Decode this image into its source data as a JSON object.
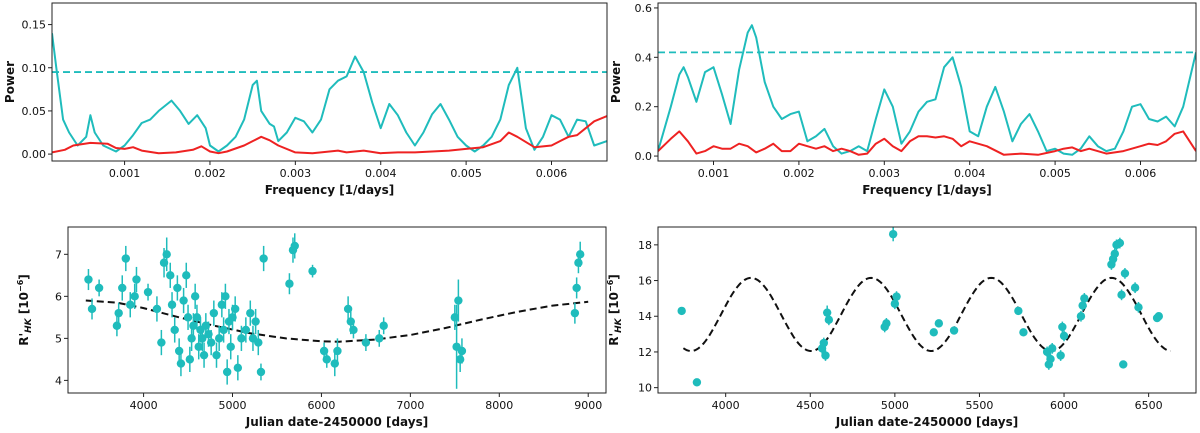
{
  "colors": {
    "series_main": "#1fbcbc",
    "series_window": "#ee2222",
    "fap_line": "#1fbcbc",
    "model": "#111111",
    "points": "#1fbcbc"
  },
  "chart_data": [
    {
      "id": "top-left",
      "type": "line",
      "xlabel": "Frequency [1/days]",
      "ylabel": "Power",
      "xlim": [
        0.00015,
        0.00665
      ],
      "ylim": [
        -0.008,
        0.175
      ],
      "xticks": [
        0.001,
        0.002,
        0.003,
        0.004,
        0.005,
        0.006
      ],
      "xtick_labels": [
        "0.001",
        "0.002",
        "0.003",
        "0.004",
        "0.005",
        "0.006"
      ],
      "yticks": [
        0.0,
        0.05,
        0.1,
        0.15
      ],
      "ytick_labels": [
        "0.00",
        "0.05",
        "0.10",
        "0.15"
      ],
      "threshold": 0.095,
      "series": [
        {
          "x": [
            0.00015,
            0.0002,
            0.00028,
            0.00035,
            0.00045,
            0.00055,
            0.0006,
            0.00065,
            0.00075,
            0.0009,
            0.001,
            0.0011,
            0.0012,
            0.0013,
            0.0014,
            0.00155,
            0.00165,
            0.00175,
            0.00185,
            0.00195,
            0.002,
            0.0021,
            0.0022,
            0.0023,
            0.0024,
            0.0025,
            0.00255,
            0.0026,
            0.0027,
            0.00275,
            0.0028,
            0.0029,
            0.003,
            0.0031,
            0.0032,
            0.0033,
            0.0034,
            0.0035,
            0.0036,
            0.0037,
            0.0038,
            0.0039,
            0.004,
            0.0041,
            0.0042,
            0.0043,
            0.0044,
            0.0045,
            0.0046,
            0.0047,
            0.0048,
            0.0049,
            0.005,
            0.0051,
            0.0052,
            0.0053,
            0.0054,
            0.0055,
            0.0056,
            0.0057,
            0.0058,
            0.0059,
            0.006,
            0.0061,
            0.0062,
            0.0063,
            0.0064,
            0.0065,
            0.00665
          ],
          "values": [
            0.14,
            0.1,
            0.04,
            0.025,
            0.01,
            0.02,
            0.045,
            0.025,
            0.01,
            0.003,
            0.01,
            0.022,
            0.036,
            0.04,
            0.05,
            0.062,
            0.05,
            0.035,
            0.045,
            0.03,
            0.01,
            0.003,
            0.01,
            0.02,
            0.04,
            0.08,
            0.085,
            0.05,
            0.035,
            0.032,
            0.015,
            0.025,
            0.042,
            0.038,
            0.025,
            0.04,
            0.075,
            0.085,
            0.09,
            0.113,
            0.095,
            0.06,
            0.03,
            0.058,
            0.045,
            0.025,
            0.01,
            0.025,
            0.046,
            0.058,
            0.04,
            0.02,
            0.01,
            0.003,
            0.01,
            0.02,
            0.04,
            0.08,
            0.1,
            0.03,
            0.005,
            0.02,
            0.045,
            0.04,
            0.02,
            0.04,
            0.038,
            0.01,
            0.015
          ]
        },
        {
          "x": [
            0.00015,
            0.0003,
            0.0004,
            0.0006,
            0.0008,
            0.0009,
            0.001,
            0.0011,
            0.0012,
            0.0014,
            0.0016,
            0.0018,
            0.0019,
            0.002,
            0.0021,
            0.0022,
            0.0024,
            0.0025,
            0.0026,
            0.0027,
            0.0028,
            0.003,
            0.0032,
            0.0034,
            0.0035,
            0.0036,
            0.0038,
            0.004,
            0.0042,
            0.0044,
            0.0046,
            0.0048,
            0.005,
            0.0052,
            0.0054,
            0.0055,
            0.0056,
            0.0058,
            0.006,
            0.0061,
            0.0062,
            0.0063,
            0.0064,
            0.0065,
            0.00665
          ],
          "values": [
            0.002,
            0.005,
            0.01,
            0.013,
            0.012,
            0.007,
            0.006,
            0.008,
            0.004,
            0.001,
            0.002,
            0.005,
            0.009,
            0.003,
            0.001,
            0.003,
            0.01,
            0.015,
            0.02,
            0.016,
            0.01,
            0.002,
            0.001,
            0.003,
            0.004,
            0.002,
            0.004,
            0.001,
            0.002,
            0.002,
            0.003,
            0.004,
            0.006,
            0.008,
            0.015,
            0.025,
            0.02,
            0.008,
            0.01,
            0.015,
            0.02,
            0.022,
            0.03,
            0.038,
            0.044
          ]
        }
      ]
    },
    {
      "id": "top-right",
      "type": "line",
      "xlabel": "Frequency [1/days]",
      "ylabel": "Power",
      "xlim": [
        0.00035,
        0.00665
      ],
      "ylim": [
        -0.02,
        0.62
      ],
      "xticks": [
        0.001,
        0.002,
        0.003,
        0.004,
        0.005,
        0.006
      ],
      "xtick_labels": [
        "0.001",
        "0.002",
        "0.003",
        "0.004",
        "0.005",
        "0.006"
      ],
      "yticks": [
        0.0,
        0.2,
        0.4,
        0.6
      ],
      "ytick_labels": [
        "0.0",
        "0.2",
        "0.4",
        "0.6"
      ],
      "threshold": 0.42,
      "series": [
        {
          "x": [
            0.00035,
            0.0005,
            0.0006,
            0.00065,
            0.0007,
            0.0008,
            0.0009,
            0.001,
            0.0011,
            0.0012,
            0.0013,
            0.0014,
            0.00145,
            0.0015,
            0.0016,
            0.0017,
            0.0018,
            0.0019,
            0.002,
            0.0021,
            0.0022,
            0.0023,
            0.0024,
            0.0025,
            0.0026,
            0.0027,
            0.0028,
            0.0029,
            0.003,
            0.0031,
            0.0032,
            0.0033,
            0.0034,
            0.0035,
            0.0036,
            0.0037,
            0.0038,
            0.0039,
            0.004,
            0.0041,
            0.0042,
            0.0043,
            0.0044,
            0.0045,
            0.0046,
            0.0047,
            0.0048,
            0.0049,
            0.005,
            0.0051,
            0.0052,
            0.0053,
            0.0054,
            0.0055,
            0.0056,
            0.0057,
            0.0058,
            0.0059,
            0.006,
            0.0061,
            0.0062,
            0.0063,
            0.0064,
            0.0065,
            0.00665
          ],
          "values": [
            0.02,
            0.2,
            0.33,
            0.36,
            0.32,
            0.22,
            0.34,
            0.36,
            0.25,
            0.13,
            0.35,
            0.5,
            0.53,
            0.48,
            0.3,
            0.2,
            0.15,
            0.17,
            0.18,
            0.06,
            0.08,
            0.11,
            0.04,
            0.01,
            0.02,
            0.04,
            0.02,
            0.15,
            0.27,
            0.2,
            0.05,
            0.1,
            0.18,
            0.22,
            0.23,
            0.36,
            0.4,
            0.28,
            0.1,
            0.08,
            0.2,
            0.28,
            0.18,
            0.06,
            0.13,
            0.17,
            0.1,
            0.02,
            0.03,
            0.01,
            0.005,
            0.03,
            0.08,
            0.04,
            0.02,
            0.03,
            0.1,
            0.2,
            0.21,
            0.15,
            0.14,
            0.16,
            0.12,
            0.2,
            0.42
          ]
        },
        {
          "x": [
            0.00035,
            0.0005,
            0.0006,
            0.0007,
            0.0008,
            0.0009,
            0.001,
            0.0011,
            0.0012,
            0.0013,
            0.0014,
            0.0015,
            0.0016,
            0.0017,
            0.0018,
            0.0019,
            0.002,
            0.0021,
            0.0022,
            0.0023,
            0.0024,
            0.0025,
            0.0026,
            0.0027,
            0.0028,
            0.0029,
            0.003,
            0.0031,
            0.0032,
            0.0033,
            0.0034,
            0.0035,
            0.0036,
            0.0037,
            0.0038,
            0.0039,
            0.004,
            0.0042,
            0.0044,
            0.0046,
            0.0048,
            0.005,
            0.0051,
            0.0052,
            0.0053,
            0.0054,
            0.0056,
            0.0058,
            0.006,
            0.0061,
            0.0062,
            0.0063,
            0.0064,
            0.0065,
            0.00665
          ],
          "values": [
            0.02,
            0.07,
            0.1,
            0.06,
            0.01,
            0.02,
            0.04,
            0.03,
            0.03,
            0.05,
            0.04,
            0.015,
            0.03,
            0.05,
            0.02,
            0.02,
            0.05,
            0.04,
            0.03,
            0.04,
            0.02,
            0.03,
            0.02,
            0.005,
            0.01,
            0.05,
            0.07,
            0.04,
            0.02,
            0.06,
            0.08,
            0.08,
            0.075,
            0.08,
            0.07,
            0.04,
            0.06,
            0.04,
            0.005,
            0.01,
            0.005,
            0.02,
            0.03,
            0.035,
            0.02,
            0.03,
            0.01,
            0.02,
            0.04,
            0.05,
            0.045,
            0.06,
            0.09,
            0.1,
            0.02
          ]
        }
      ]
    },
    {
      "id": "bottom-left",
      "type": "scatter",
      "xlabel": "Julian date-2450000 [days]",
      "ylabel": "R'_HK [10^-6]",
      "xlim": [
        3150,
        9200
      ],
      "ylim": [
        3.7,
        7.65
      ],
      "xticks": [
        4000,
        5000,
        6000,
        7000,
        8000,
        9000
      ],
      "xtick_labels": [
        "4000",
        "5000",
        "6000",
        "7000",
        "8000",
        "9000"
      ],
      "yticks": [
        4,
        5,
        6,
        7
      ],
      "ytick_labels": [
        "4",
        "5",
        "6",
        "7"
      ],
      "model": {
        "x": [
          3350,
          3700,
          4000,
          4400,
          4800,
          5200,
          5600,
          6000,
          6200,
          6600,
          7000,
          7400,
          7800,
          8200,
          8600,
          9000
        ],
        "values": [
          5.9,
          5.85,
          5.72,
          5.5,
          5.3,
          5.12,
          5.0,
          4.93,
          4.92,
          4.97,
          5.08,
          5.25,
          5.45,
          5.63,
          5.78,
          5.87
        ]
      },
      "points": {
        "x": [
          3380,
          3420,
          3500,
          3700,
          3720,
          3760,
          3800,
          3850,
          3900,
          3920,
          4050,
          4150,
          4200,
          4230,
          4260,
          4300,
          4320,
          4350,
          4380,
          4400,
          4420,
          4450,
          4480,
          4500,
          4520,
          4540,
          4560,
          4580,
          4600,
          4620,
          4640,
          4660,
          4680,
          4700,
          4730,
          4760,
          4790,
          4820,
          4850,
          4880,
          4900,
          4920,
          4940,
          4960,
          4980,
          5000,
          5030,
          5060,
          5100,
          5150,
          5200,
          5230,
          5260,
          5290,
          5320,
          5350,
          5640,
          5680,
          5700,
          5900,
          6030,
          6060,
          6150,
          6180,
          6300,
          6330,
          6360,
          6500,
          6650,
          6700,
          7500,
          7520,
          7540,
          7560,
          7580,
          8850,
          8870,
          8890,
          8910
        ],
        "values": [
          6.4,
          5.7,
          6.2,
          5.3,
          5.6,
          6.2,
          6.9,
          5.8,
          6.0,
          6.4,
          6.1,
          5.7,
          4.9,
          6.8,
          7.0,
          6.5,
          5.8,
          5.2,
          6.2,
          4.7,
          4.4,
          5.9,
          6.5,
          5.5,
          4.5,
          5.0,
          5.3,
          6.0,
          5.5,
          4.8,
          5.2,
          5.0,
          4.6,
          5.3,
          5.1,
          4.9,
          5.6,
          4.6,
          5.0,
          5.8,
          5.2,
          6.0,
          4.2,
          5.4,
          4.8,
          5.5,
          5.7,
          4.3,
          5.0,
          5.2,
          5.6,
          5.0,
          5.4,
          4.9,
          4.2,
          6.9,
          6.3,
          7.1,
          7.2,
          6.6,
          4.7,
          4.5,
          4.4,
          4.7,
          5.7,
          5.4,
          5.2,
          4.9,
          5.0,
          5.3,
          5.5,
          4.8,
          5.9,
          4.5,
          4.7,
          5.6,
          6.2,
          6.8,
          7.0
        ],
        "errors": [
          0.25,
          0.25,
          0.2,
          0.25,
          0.25,
          0.3,
          0.3,
          0.3,
          0.3,
          0.3,
          0.2,
          0.3,
          0.3,
          0.35,
          0.4,
          0.3,
          0.3,
          0.3,
          0.3,
          0.3,
          0.3,
          0.3,
          0.3,
          0.3,
          0.3,
          0.3,
          0.3,
          0.3,
          0.3,
          0.3,
          0.3,
          0.3,
          0.3,
          0.3,
          0.3,
          0.3,
          0.3,
          0.3,
          0.3,
          0.3,
          0.3,
          0.3,
          0.3,
          0.3,
          0.3,
          0.3,
          0.3,
          0.3,
          0.3,
          0.3,
          0.3,
          0.3,
          0.3,
          0.3,
          0.2,
          0.3,
          0.25,
          0.3,
          0.3,
          0.15,
          0.2,
          0.2,
          0.3,
          0.3,
          0.3,
          0.3,
          0.2,
          0.2,
          0.2,
          0.2,
          0.3,
          1.0,
          0.5,
          0.3,
          0.3,
          0.25,
          0.25,
          0.25,
          0.3
        ]
      }
    },
    {
      "id": "bottom-right",
      "type": "scatter",
      "xlabel": "Julian date-2450000 [days]",
      "ylabel": "R'_HK [10^-6]",
      "xlim": [
        3600,
        6780
      ],
      "ylim": [
        9.7,
        19.0
      ],
      "xticks": [
        4000,
        4500,
        5000,
        5500,
        6000,
        6500
      ],
      "xtick_labels": [
        "4000",
        "4500",
        "5000",
        "5500",
        "6000",
        "6500"
      ],
      "yticks": [
        10,
        12,
        14,
        16,
        18
      ],
      "ytick_labels": [
        "10",
        "12",
        "14",
        "16",
        "18"
      ],
      "model": {
        "period": 710,
        "mean": 14.1,
        "amplitude": 2.05,
        "phase_peak_x": 4150,
        "x_start": 3750,
        "x_end": 6630
      },
      "points": {
        "x": [
          3740,
          3830,
          4570,
          4580,
          4590,
          4600,
          4610,
          4940,
          4950,
          4990,
          5000,
          5010,
          5230,
          5260,
          5350,
          5730,
          5760,
          5900,
          5910,
          5920,
          5930,
          5980,
          5990,
          6000,
          6100,
          6110,
          6120,
          6280,
          6290,
          6300,
          6310,
          6330,
          6340,
          6350,
          6360,
          6420,
          6440,
          6550,
          6560
        ],
        "values": [
          14.3,
          10.3,
          12.2,
          12.5,
          11.8,
          14.2,
          13.8,
          13.4,
          13.6,
          18.6,
          14.7,
          15.1,
          13.1,
          13.6,
          13.2,
          14.3,
          13.1,
          12.0,
          11.3,
          11.6,
          12.2,
          11.8,
          13.4,
          12.9,
          14.0,
          14.6,
          15.0,
          16.9,
          17.2,
          17.5,
          18.0,
          18.1,
          15.2,
          11.3,
          16.4,
          15.6,
          14.5,
          13.9,
          14.0
        ],
        "errors": [
          0.2,
          0.2,
          0.3,
          0.3,
          0.3,
          0.4,
          0.3,
          0.3,
          0.3,
          0.4,
          0.3,
          0.3,
          0.2,
          0.2,
          0.2,
          0.2,
          0.2,
          0.3,
          0.3,
          0.3,
          0.3,
          0.3,
          0.3,
          0.3,
          0.3,
          0.3,
          0.3,
          0.3,
          0.3,
          0.3,
          0.3,
          0.3,
          0.3,
          0.2,
          0.3,
          0.3,
          0.3,
          0.2,
          0.2
        ]
      }
    }
  ]
}
